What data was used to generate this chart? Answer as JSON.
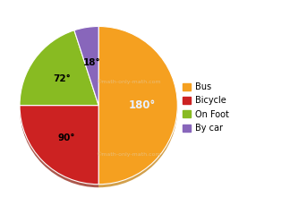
{
  "labels": [
    "Bus",
    "Bicycle",
    "On Foot",
    "By car"
  ],
  "angles": [
    180,
    90,
    72,
    18
  ],
  "colors": [
    "#F5A020",
    "#CC2222",
    "#88BB22",
    "#8866BB"
  ],
  "angle_labels": [
    "180°",
    "90°",
    "72°",
    "18°"
  ],
  "watermark_top": "©math-only-math.com",
  "watermark_bottom": "©math-only-math.com",
  "background_color": "#FFFFFF",
  "shadow_colors": [
    "#C07800",
    "#881100",
    "#4A6600",
    "#443366"
  ],
  "legend_labels": [
    "Bus",
    "Bicycle",
    "On Foot",
    "By car"
  ]
}
